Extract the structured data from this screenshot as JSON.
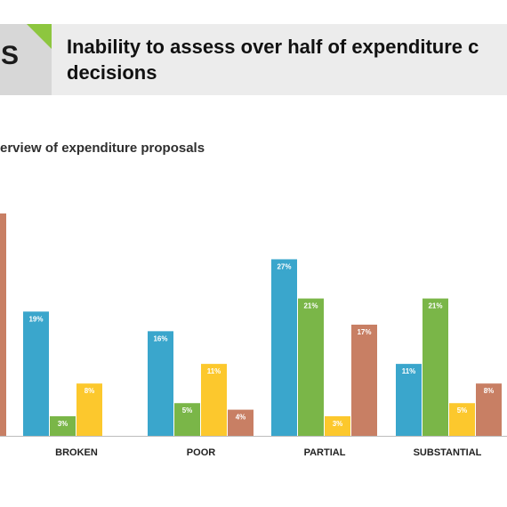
{
  "header": {
    "tile_letter": "S",
    "title_line1": "Inability to assess over half of expenditure c",
    "title_line2": "decisions"
  },
  "colors": {
    "series_1": "#3aa6cc",
    "series_2": "#7ab648",
    "series_3": "#fcc82d",
    "series_4": "#c87f64",
    "accent": "#8dc63f"
  },
  "chart_data": {
    "type": "bar",
    "title": "",
    "subtitle": "erview of expenditure proposals",
    "xlabel": "",
    "ylabel": "",
    "ylim": [
      0,
      34
    ],
    "grid": false,
    "legend": "none",
    "categories": [
      "BROKEN",
      "POOR",
      "PARTIAL",
      "SUBSTANTIAL"
    ],
    "series": [
      {
        "values": [
          19,
          16,
          27,
          11
        ],
        "labels": [
          "19%",
          "16%",
          "27%",
          "11%"
        ]
      },
      {
        "values": [
          3,
          5,
          21,
          21
        ],
        "labels": [
          "3%",
          "5%",
          "21%",
          "21%"
        ]
      },
      {
        "values": [
          8,
          11,
          3,
          5
        ],
        "labels": [
          "8%",
          "11%",
          "3%",
          "5%"
        ]
      },
      {
        "values": [
          null,
          4,
          17,
          8
        ],
        "labels": [
          null,
          "4%",
          "17%",
          "8%"
        ]
      }
    ],
    "cropped_left_bar": {
      "series_index": 3,
      "value": 34
    }
  }
}
